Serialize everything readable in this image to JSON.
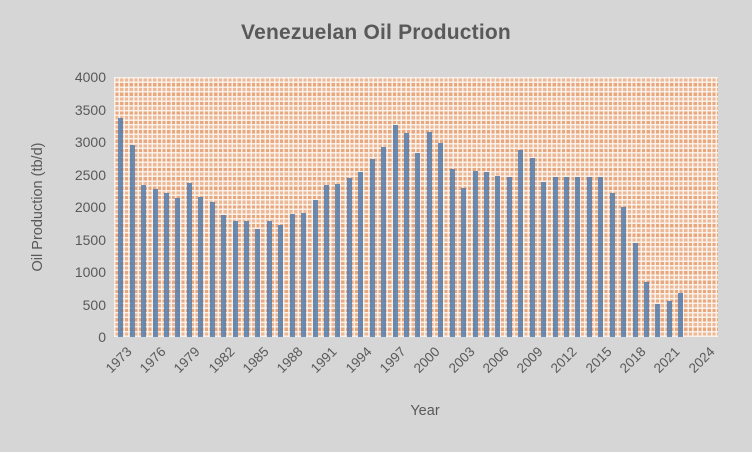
{
  "window": {
    "background_color": "#d6d6d6"
  },
  "colors": {
    "text": "#595959",
    "bar_fill": "rgba(84,123,170,0.85)",
    "plot_pattern_orange": "#e8a77d",
    "plot_pattern_light": "#faf4ee"
  },
  "chart_data": {
    "type": "bar",
    "title": "Venezuelan Oil Production",
    "xlabel": "Year",
    "ylabel": "Oil Production (tb/d)",
    "ylim": [
      0,
      4000
    ],
    "ytick_step": 500,
    "ytick_labels": [
      "0",
      "500",
      "1000",
      "1500",
      "2000",
      "2500",
      "3000",
      "3500",
      "4000"
    ],
    "xtick_labels": [
      "1973",
      "1976",
      "1979",
      "1982",
      "1985",
      "1988",
      "1991",
      "1994",
      "1997",
      "2000",
      "2003",
      "2006",
      "2009",
      "2012",
      "2015",
      "2018",
      "2021",
      "2024"
    ],
    "grid": false,
    "legend": "none",
    "plot_background": "orange dotted-grid pattern fill",
    "categories": [
      1973,
      1974,
      1975,
      1976,
      1977,
      1978,
      1979,
      1980,
      1981,
      1982,
      1983,
      1984,
      1985,
      1986,
      1987,
      1988,
      1989,
      1990,
      1991,
      1992,
      1993,
      1994,
      1995,
      1996,
      1997,
      1998,
      1999,
      2000,
      2001,
      2002,
      2003,
      2004,
      2005,
      2006,
      2007,
      2008,
      2009,
      2010,
      2011,
      2012,
      2013,
      2014,
      2015,
      2016,
      2017,
      2018,
      2019,
      2020,
      2021,
      2022,
      2023,
      2024
    ],
    "values": [
      3365,
      2955,
      2340,
      2280,
      2215,
      2145,
      2365,
      2150,
      2085,
      1880,
      1790,
      1785,
      1660,
      1790,
      1725,
      1895,
      1905,
      2110,
      2345,
      2355,
      2445,
      2545,
      2740,
      2930,
      3265,
      3145,
      2835,
      3160,
      2990,
      2580,
      2300,
      2555,
      2545,
      2470,
      2460,
      2870,
      2750,
      2380,
      2460,
      2465,
      2465,
      2465,
      2465,
      2220,
      2005,
      1450,
      845,
      510,
      560,
      685,
      null,
      null
    ]
  }
}
